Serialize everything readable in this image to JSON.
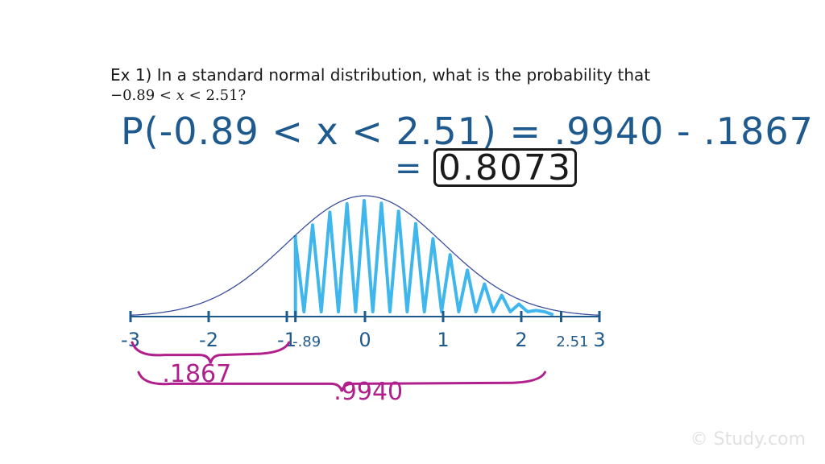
{
  "question": {
    "text": "Ex 1) In a standard normal distribution, what is the probability that",
    "math": {
      "left": "−0.89",
      "lt1": "<",
      "var": "x",
      "lt2": "<",
      "right": "2.51",
      "end": "?"
    }
  },
  "work": {
    "line1": "P(-0.89 < x < 2.51) = .9940 - .1867",
    "equals": "=",
    "answer": "0.8073"
  },
  "graph": {
    "ticks": [
      "-3",
      "-2",
      "-1",
      "-.89",
      "0",
      "1",
      "2",
      "2.51",
      "3"
    ],
    "tick_values": [
      -3,
      -2,
      -1,
      -0.89,
      0,
      1,
      2,
      2.51,
      3
    ],
    "shade_from": -0.89,
    "shade_to": 2.51,
    "brace_small_label": ".1867",
    "brace_large_label": ".9940",
    "curve_color": "#3a4e9c",
    "shade_color": "#3fb6ec",
    "brace_color": "#b01f8c",
    "axis_color": "#1f5a8e"
  },
  "watermark": "© Study.com"
}
